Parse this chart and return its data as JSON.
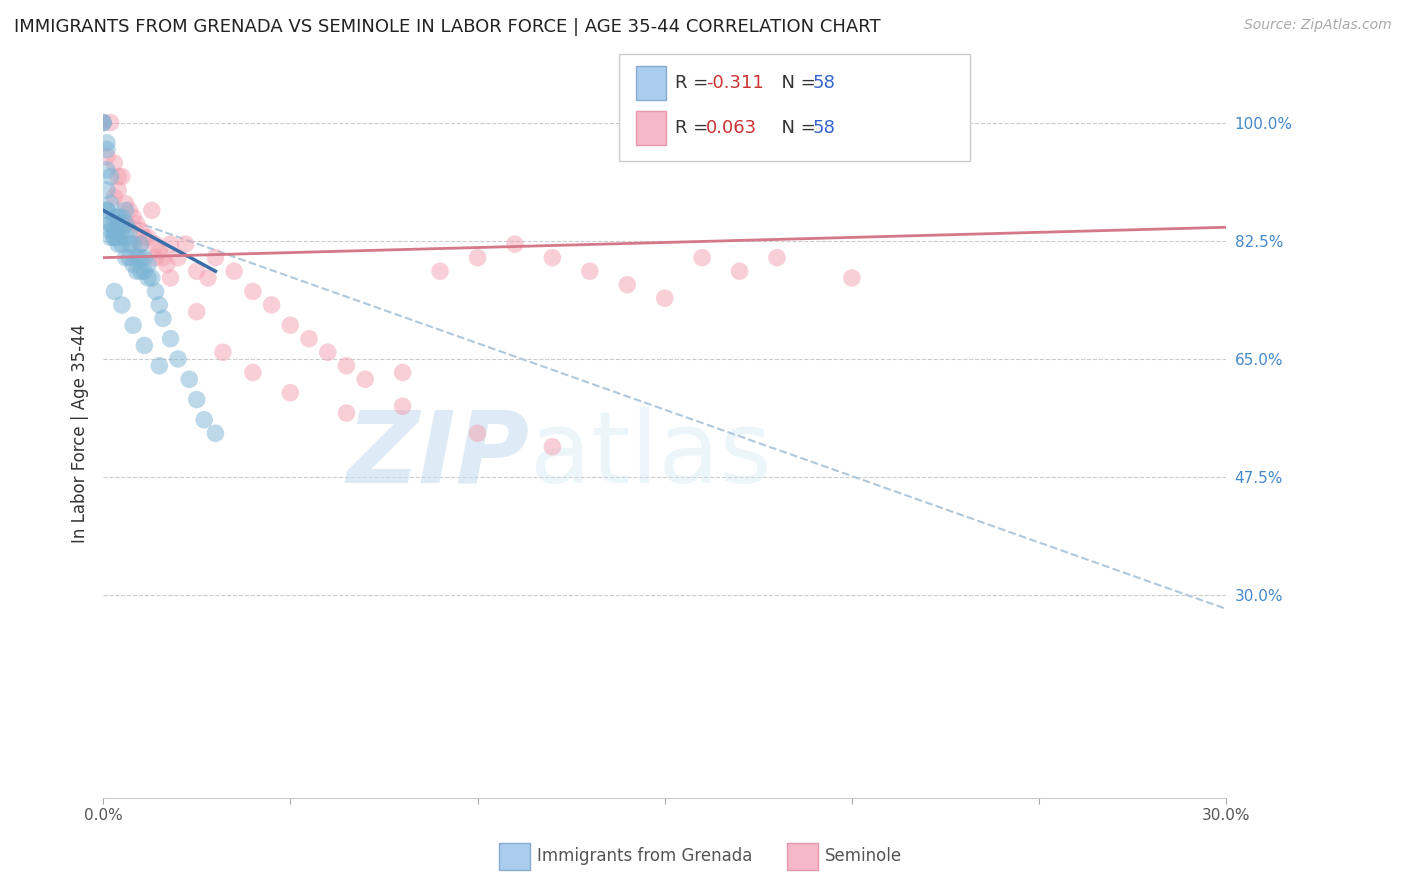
{
  "title": "IMMIGRANTS FROM GRENADA VS SEMINOLE IN LABOR FORCE | AGE 35-44 CORRELATION CHART",
  "source_text": "Source: ZipAtlas.com",
  "ylabel": "In Labor Force | Age 35-44",
  "xlim": [
    0.0,
    0.3
  ],
  "ylim": [
    0.0,
    1.08
  ],
  "y_ticks_right": [
    0.3,
    0.475,
    0.65,
    0.825,
    1.0
  ],
  "y_tick_labels_right": [
    "30.0%",
    "47.5%",
    "65.0%",
    "82.5%",
    "100.0%"
  ],
  "grid_color": "#cccccc",
  "background_color": "#ffffff",
  "color_blue": "#7ab3d4",
  "color_pink": "#f4a0b0",
  "color_blue_line": "#3a6ea8",
  "color_pink_line": "#d4788a",
  "color_dashed": "#b0c8dc",
  "watermark_zip": "ZIP",
  "watermark_atlas": "atlas",
  "blue_scatter_x": [
    0.0,
    0.0,
    0.001,
    0.001,
    0.001,
    0.001,
    0.001,
    0.001,
    0.002,
    0.002,
    0.002,
    0.002,
    0.002,
    0.002,
    0.003,
    0.003,
    0.003,
    0.003,
    0.004,
    0.004,
    0.004,
    0.004,
    0.005,
    0.005,
    0.005,
    0.006,
    0.006,
    0.006,
    0.006,
    0.007,
    0.007,
    0.007,
    0.008,
    0.008,
    0.009,
    0.009,
    0.01,
    0.01,
    0.01,
    0.011,
    0.011,
    0.012,
    0.012,
    0.013,
    0.014,
    0.015,
    0.016,
    0.018,
    0.02,
    0.023,
    0.025,
    0.027,
    0.03,
    0.003,
    0.005,
    0.008,
    0.011,
    0.015
  ],
  "blue_scatter_y": [
    1.0,
    1.0,
    0.97,
    0.93,
    0.9,
    0.87,
    0.87,
    0.96,
    0.92,
    0.88,
    0.85,
    0.85,
    0.84,
    0.83,
    0.86,
    0.84,
    0.83,
    0.83,
    0.86,
    0.85,
    0.83,
    0.82,
    0.86,
    0.84,
    0.82,
    0.87,
    0.85,
    0.83,
    0.8,
    0.84,
    0.82,
    0.8,
    0.82,
    0.79,
    0.8,
    0.78,
    0.82,
    0.8,
    0.78,
    0.8,
    0.78,
    0.79,
    0.77,
    0.77,
    0.75,
    0.73,
    0.71,
    0.68,
    0.65,
    0.62,
    0.59,
    0.56,
    0.54,
    0.75,
    0.73,
    0.7,
    0.67,
    0.64
  ],
  "pink_scatter_x": [
    0.0,
    0.001,
    0.002,
    0.003,
    0.004,
    0.004,
    0.005,
    0.006,
    0.007,
    0.008,
    0.009,
    0.01,
    0.011,
    0.012,
    0.013,
    0.014,
    0.015,
    0.016,
    0.017,
    0.018,
    0.02,
    0.022,
    0.025,
    0.028,
    0.03,
    0.035,
    0.04,
    0.045,
    0.05,
    0.055,
    0.06,
    0.065,
    0.07,
    0.08,
    0.09,
    0.1,
    0.11,
    0.12,
    0.13,
    0.14,
    0.15,
    0.16,
    0.17,
    0.18,
    0.2,
    0.003,
    0.006,
    0.01,
    0.014,
    0.018,
    0.025,
    0.032,
    0.04,
    0.05,
    0.065,
    0.08,
    0.1,
    0.12
  ],
  "pink_scatter_y": [
    1.0,
    0.95,
    1.0,
    0.94,
    0.92,
    0.9,
    0.92,
    0.88,
    0.87,
    0.86,
    0.85,
    0.84,
    0.83,
    0.83,
    0.87,
    0.82,
    0.81,
    0.8,
    0.79,
    0.82,
    0.8,
    0.82,
    0.78,
    0.77,
    0.8,
    0.78,
    0.75,
    0.73,
    0.7,
    0.68,
    0.66,
    0.64,
    0.62,
    0.63,
    0.78,
    0.8,
    0.82,
    0.8,
    0.78,
    0.76,
    0.74,
    0.8,
    0.78,
    0.8,
    0.77,
    0.89,
    0.85,
    0.82,
    0.8,
    0.77,
    0.72,
    0.66,
    0.63,
    0.6,
    0.57,
    0.58,
    0.54,
    0.52
  ],
  "blue_line_x0": 0.0,
  "blue_line_x1": 0.03,
  "blue_line_y0": 0.87,
  "blue_line_y1": 0.78,
  "pink_line_x0": 0.0,
  "pink_line_x1": 0.3,
  "pink_line_y0": 0.8,
  "pink_line_y1": 0.845,
  "dashed_line_x0": 0.0,
  "dashed_line_x1": 0.3,
  "dashed_line_y0": 0.87,
  "dashed_line_y1": 0.28
}
